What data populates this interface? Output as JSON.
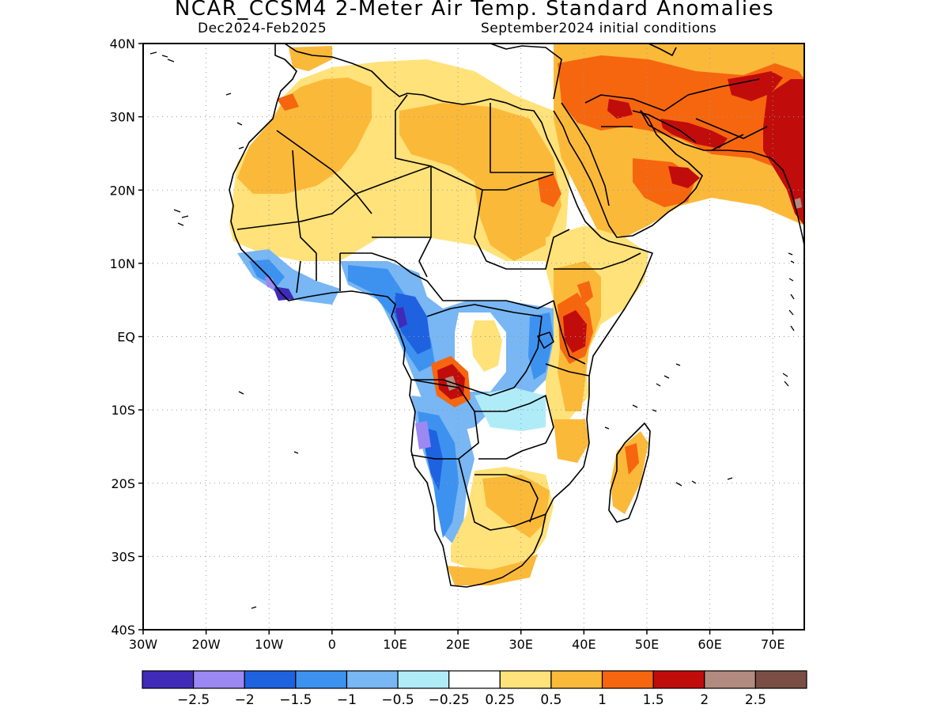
{
  "header": {
    "title": "NCAR_CCSM4 2-Meter Air Temp. Standard Anomalies",
    "subtitle_left": "Dec2024-Feb2025",
    "subtitle_right": "September2024 initial conditions"
  },
  "map": {
    "lon_range": [
      -30,
      75
    ],
    "lat_range": [
      -40,
      40
    ],
    "lat_labels": [
      {
        "lat": 40,
        "label": "40N"
      },
      {
        "lat": 30,
        "label": "30N"
      },
      {
        "lat": 20,
        "label": "20N"
      },
      {
        "lat": 10,
        "label": "10N"
      },
      {
        "lat": 0,
        "label": "EQ"
      },
      {
        "lat": -10,
        "label": "10S"
      },
      {
        "lat": -20,
        "label": "20S"
      },
      {
        "lat": -30,
        "label": "30S"
      },
      {
        "lat": -40,
        "label": "40S"
      }
    ],
    "lon_labels": [
      {
        "lon": -30,
        "label": "30W"
      },
      {
        "lon": -20,
        "label": "20W"
      },
      {
        "lon": -10,
        "label": "10W"
      },
      {
        "lon": 0,
        "label": "0"
      },
      {
        "lon": 10,
        "label": "10E"
      },
      {
        "lon": 20,
        "label": "20E"
      },
      {
        "lon": 30,
        "label": "30E"
      },
      {
        "lon": 40,
        "label": "40E"
      },
      {
        "lon": 50,
        "label": "50E"
      },
      {
        "lon": 60,
        "label": "60E"
      },
      {
        "lon": 70,
        "label": "70E"
      }
    ],
    "grid": "dotted"
  },
  "colorbar": {
    "colors": [
      "#3f2bb8",
      "#9b88f2",
      "#1f62e0",
      "#3d92f0",
      "#78b6f4",
      "#b0ecf8",
      "#ffffff",
      "#ffe27a",
      "#fbb93a",
      "#f6660f",
      "#c10c0c",
      "#b28a7f",
      "#7a4e44"
    ],
    "labels": [
      "-2.5",
      "-2",
      "-1.5",
      "-1",
      "-0.5",
      "-0.25",
      "0.25",
      "0.5",
      "1",
      "1.5",
      "2",
      "2.5"
    ]
  }
}
